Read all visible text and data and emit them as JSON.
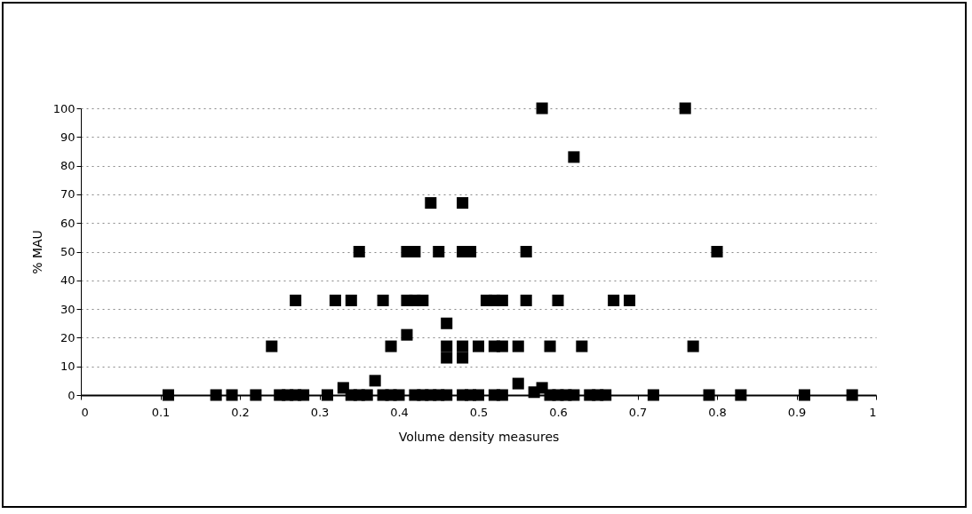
{
  "chart_data": {
    "type": "scatter",
    "xlabel": "Volume density measures",
    "ylabel": "% MAU",
    "marker": "square",
    "grid": "y",
    "legend": false,
    "xlim": [
      0,
      1
    ],
    "xticks": [
      0,
      0.1,
      0.2,
      0.3,
      0.4,
      0.5,
      0.6,
      0.7,
      0.8,
      0.9,
      1
    ],
    "ylim": [
      0,
      100
    ],
    "yticks": [
      0,
      10,
      20,
      30,
      40,
      50,
      60,
      70,
      80,
      90,
      100
    ],
    "series": [
      {
        "color": "#000000",
        "x": [
          0.58,
          0.76,
          0.62,
          0.44,
          0.48,
          0.35,
          0.41,
          0.42,
          0.45,
          0.48,
          0.49,
          0.56,
          0.8,
          0.27,
          0.32,
          0.34,
          0.38,
          0.41,
          0.42,
          0.43,
          0.51,
          0.52,
          0.53,
          0.56,
          0.6,
          0.67,
          0.69,
          0.46,
          0.41,
          0.24,
          0.39,
          0.46,
          0.48,
          0.5,
          0.52,
          0.53,
          0.55,
          0.59,
          0.63,
          0.77,
          0.46,
          0.48,
          0.37,
          0.55,
          0.33,
          0.58,
          0.57,
          0.11,
          0.17,
          0.19,
          0.22,
          0.25,
          0.26,
          0.27,
          0.28,
          0.31,
          0.34,
          0.35,
          0.36,
          0.38,
          0.39,
          0.4,
          0.42,
          0.43,
          0.44,
          0.45,
          0.46,
          0.48,
          0.49,
          0.5,
          0.52,
          0.53,
          0.59,
          0.6,
          0.61,
          0.62,
          0.64,
          0.65,
          0.66,
          0.72,
          0.79,
          0.83,
          0.91,
          0.97
        ],
        "values": [
          100,
          100,
          83,
          67,
          67,
          50,
          50,
          50,
          50,
          50,
          50,
          50,
          50,
          33,
          33,
          33,
          33,
          33,
          33,
          33,
          33,
          33,
          33,
          33,
          33,
          33,
          33,
          25,
          21,
          17,
          17,
          17,
          17,
          17,
          17,
          17,
          17,
          17,
          17,
          17,
          13,
          13,
          5,
          4,
          2.5,
          2.5,
          1,
          0,
          0,
          0,
          0,
          0,
          0,
          0,
          0,
          0,
          0,
          0,
          0,
          0,
          0,
          0,
          0,
          0,
          0,
          0,
          0,
          0,
          0,
          0,
          0,
          0,
          0,
          0,
          0,
          0,
          0,
          0,
          0,
          0,
          0,
          0,
          0,
          0
        ]
      }
    ]
  }
}
